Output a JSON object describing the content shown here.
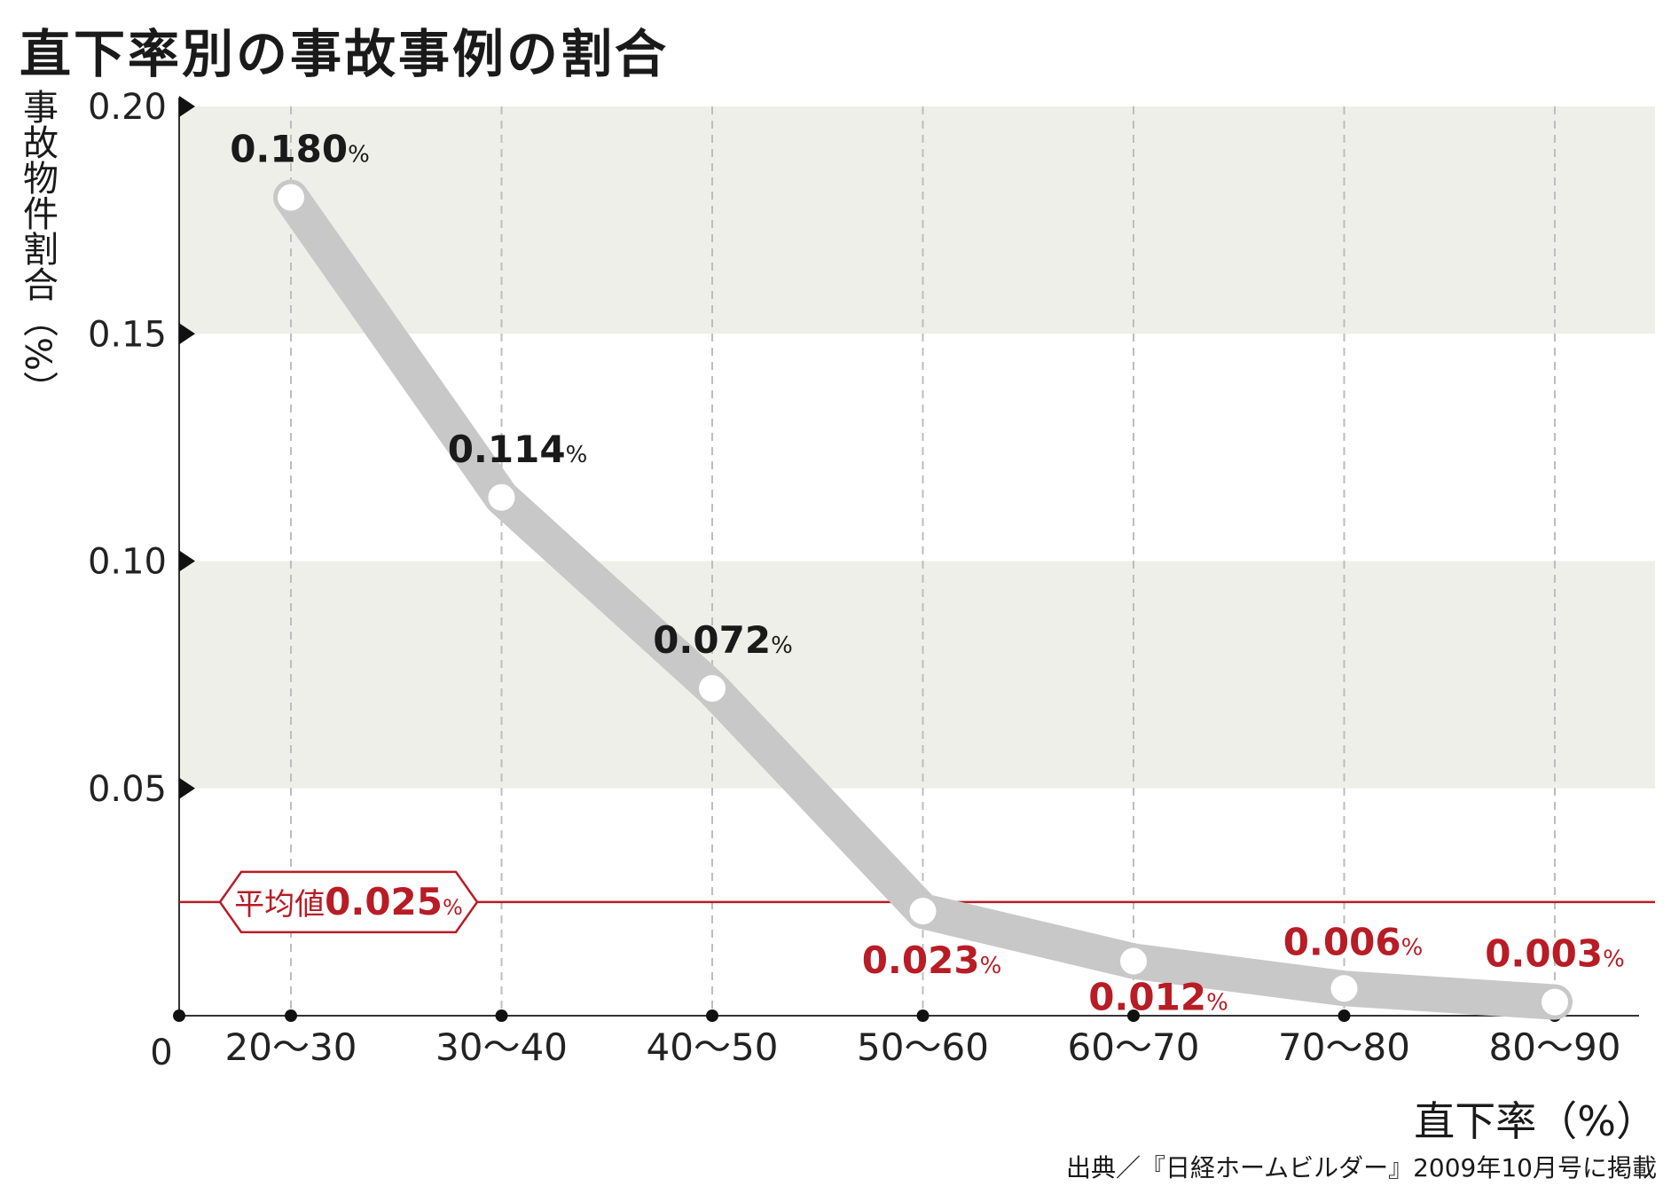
{
  "title": "直下率別の事故事例の割合",
  "source": "出典／『日経ホームビルダー』2009年10月号に掲載",
  "colors": {
    "band": "#efefe9",
    "line": "#c8c8c8",
    "marker_fill": "#ffffff",
    "grid": "#bdbdbd",
    "axis": "#333333",
    "avg": "#b81c25",
    "label_dark": "#1a1a1a",
    "label_red": "#b81c25"
  },
  "chart_data": {
    "type": "line",
    "title": "直下率別の事故事例の割合",
    "xlabel": "直下率（%）",
    "ylabel": "事故物件割合（%）",
    "categories": [
      "20〜30",
      "30〜40",
      "40〜50",
      "50〜60",
      "60〜70",
      "70〜80",
      "80〜90"
    ],
    "series": [
      {
        "values": [
          0.18,
          0.114,
          0.072,
          0.023,
          0.012,
          0.006,
          0.003
        ]
      }
    ],
    "data_labels": [
      "0.180",
      "0.114",
      "0.072",
      "0.023",
      "0.012",
      "0.006",
      "0.003"
    ],
    "data_label_unit": "%",
    "ylim": [
      0,
      0.2
    ],
    "yticks": [
      0.05,
      0.1,
      0.15,
      0.2
    ],
    "ytick_labels": [
      "0.05",
      "0.10",
      "0.15",
      "0.20"
    ],
    "origin_label": "0",
    "average": {
      "label": "平均値",
      "value": 0.025,
      "value_label": "0.025",
      "unit": "%"
    },
    "grid": true,
    "legend": "none"
  }
}
